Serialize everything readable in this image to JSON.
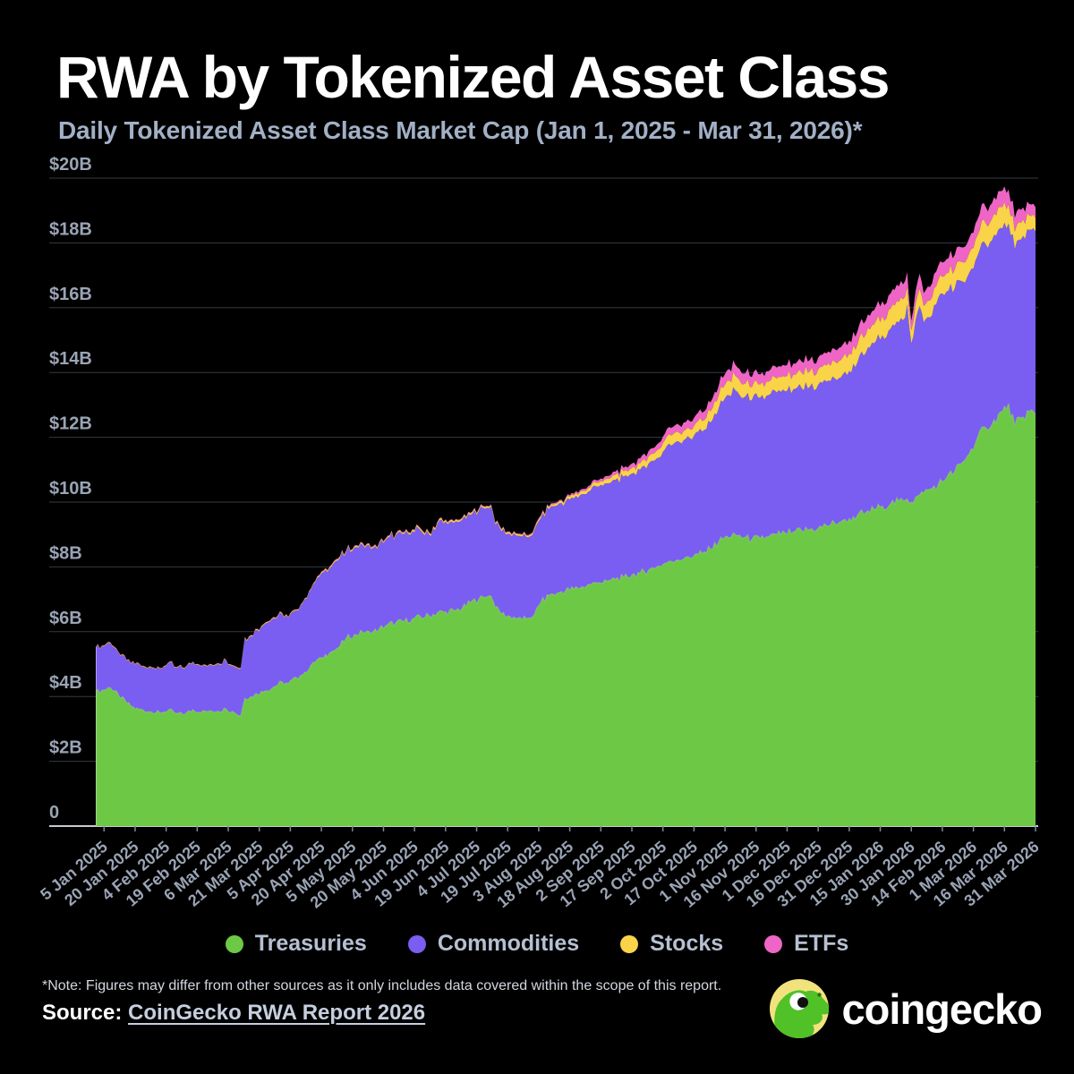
{
  "header": {
    "title": "RWA by Tokenized Asset Class",
    "subtitle": "Daily Tokenized Asset Class Market Cap (Jan 1, 2025 - Mar 31, 2026)*"
  },
  "legend": {
    "items": [
      {
        "label": "Treasuries",
        "color": "#6dc846"
      },
      {
        "label": "Commodities",
        "color": "#7a5df1"
      },
      {
        "label": "Stocks",
        "color": "#f9d348"
      },
      {
        "label": "ETFs",
        "color": "#ef65c5"
      }
    ]
  },
  "footer": {
    "note": "*Note: Figures may differ from other sources as it only includes data covered within the scope of this report.",
    "source_label": "Source:",
    "source_link": "CoinGecko RWA Report 2026",
    "brand_word": "coingecko"
  },
  "colors": {
    "background": "#000000",
    "grid": "#363b44",
    "baseline": "#c6cad2",
    "axis_text": "#9aa4b5",
    "subtitle_text": "#a2b0c6",
    "legend_text": "#b6c0d1",
    "logo_circle": "#f2e27d",
    "logo_gecko": "#50c127"
  },
  "chart_data": {
    "type": "area",
    "stacked": true,
    "title": "RWA by Tokenized Asset Class",
    "subtitle": "Daily Tokenized Asset Class Market Cap (Jan 1, 2025 - Mar 31, 2026)*",
    "unit": "USD billions",
    "grid": "horizontal",
    "legend_position": "bottom",
    "y_axis": {
      "min": 0,
      "max": 20,
      "tick_values": [
        20,
        18,
        16,
        14,
        12,
        10,
        8,
        6,
        4,
        2,
        0
      ],
      "tick_labels": [
        "$20B",
        "$18B",
        "$16B",
        "$14B",
        "$12B",
        "$10B",
        "$8B",
        "$6B",
        "$4B",
        "$2B",
        "0"
      ]
    },
    "x_axis": {
      "start": "1 Jan 2025",
      "end": "31 Mar 2026",
      "tick_days": [
        4,
        19,
        34,
        49,
        64,
        79,
        94,
        109,
        124,
        139,
        154,
        169,
        184,
        199,
        214,
        229,
        244,
        259,
        274,
        289,
        304,
        319,
        334,
        349,
        364,
        379,
        394,
        409,
        424,
        439,
        454
      ],
      "tick_labels": [
        "5 Jan 2025",
        "20 Jan 2025",
        "4 Feb 2025",
        "19 Feb 2025",
        "6 Mar 2025",
        "21 Mar 2025",
        "5 Apr 2025",
        "20 Apr 2025",
        "5 May 2025",
        "20 May 2025",
        "4 Jun 2025",
        "19 Jun 2025",
        "4 Jul 2025",
        "19 Jul 2025",
        "3 Aug 2025",
        "18 Aug 2025",
        "2 Sep 2025",
        "17 Sep 2025",
        "2 Oct 2025",
        "17 Oct 2025",
        "1 Nov 2025",
        "16 Nov 2025",
        "1 Dec 2025",
        "16 Dec 2025",
        "31 Dec 2025",
        "15 Jan 2026",
        "30 Jan 2026",
        "14 Feb 2026",
        "1 Mar 2026",
        "16 Mar 2026",
        "31 Mar 2026"
      ]
    },
    "sample_days": [
      0,
      4,
      7,
      11,
      15,
      19,
      23,
      27,
      31,
      35,
      39,
      43,
      47,
      51,
      55,
      59,
      63,
      67,
      70,
      72,
      75,
      78,
      82,
      86,
      90,
      93,
      97,
      101,
      105,
      109,
      113,
      117,
      121,
      125,
      129,
      133,
      137,
      141,
      145,
      149,
      153,
      157,
      161,
      165,
      169,
      173,
      177,
      181,
      185,
      189,
      191,
      193,
      196,
      200,
      204,
      208,
      212,
      215,
      219,
      223,
      227,
      231,
      235,
      239,
      243,
      247,
      251,
      255,
      259,
      263,
      267,
      271,
      274,
      277,
      281,
      285,
      289,
      293,
      297,
      301,
      305,
      309,
      313,
      317,
      321,
      325,
      329,
      333,
      337,
      341,
      345,
      349,
      353,
      357,
      361,
      364,
      368,
      372,
      376,
      380,
      384,
      388,
      391,
      392,
      394,
      396,
      398,
      400,
      403,
      407,
      411,
      415,
      419,
      423,
      426,
      430,
      434,
      438,
      441,
      444,
      447,
      451,
      454
    ],
    "series": [
      {
        "name": "Treasuries",
        "color": "#6dc846",
        "values": [
          4.15,
          4.2,
          4.28,
          4.05,
          3.8,
          3.62,
          3.58,
          3.52,
          3.5,
          3.58,
          3.48,
          3.45,
          3.6,
          3.52,
          3.56,
          3.55,
          3.62,
          3.5,
          3.4,
          3.95,
          4.0,
          4.08,
          4.18,
          4.3,
          4.45,
          4.4,
          4.58,
          4.75,
          5.05,
          5.2,
          5.35,
          5.5,
          5.8,
          5.92,
          5.98,
          5.95,
          6.1,
          6.22,
          6.28,
          6.32,
          6.4,
          6.45,
          6.5,
          6.58,
          6.62,
          6.65,
          6.72,
          6.9,
          7.0,
          7.08,
          7.1,
          6.75,
          6.55,
          6.48,
          6.42,
          6.4,
          6.55,
          6.9,
          7.12,
          7.2,
          7.28,
          7.32,
          7.4,
          7.45,
          7.52,
          7.56,
          7.62,
          7.68,
          7.75,
          7.82,
          7.9,
          8.0,
          8.08,
          8.18,
          8.22,
          8.3,
          8.35,
          8.42,
          8.55,
          8.78,
          8.95,
          9.0,
          8.9,
          8.85,
          8.88,
          8.92,
          9.0,
          9.05,
          9.08,
          9.12,
          9.16,
          9.2,
          9.28,
          9.35,
          9.45,
          9.5,
          9.6,
          9.68,
          9.78,
          9.88,
          9.95,
          10.02,
          10.05,
          10.1,
          10.0,
          10.15,
          10.22,
          10.28,
          10.4,
          10.55,
          10.75,
          10.95,
          11.25,
          11.65,
          12.0,
          12.3,
          12.55,
          12.8,
          13.05,
          12.35,
          12.6,
          12.8,
          12.7
        ]
      },
      {
        "name": "Commodities",
        "color": "#7a5df1",
        "values": [
          1.35,
          1.35,
          1.37,
          1.3,
          1.3,
          1.36,
          1.34,
          1.36,
          1.35,
          1.44,
          1.4,
          1.41,
          1.45,
          1.4,
          1.42,
          1.45,
          1.48,
          1.42,
          1.46,
          1.85,
          1.86,
          1.97,
          2.07,
          2.12,
          2.1,
          2.02,
          2.07,
          2.25,
          2.4,
          2.6,
          2.6,
          2.7,
          2.65,
          2.68,
          2.7,
          2.6,
          2.62,
          2.68,
          2.7,
          2.7,
          2.7,
          2.67,
          2.5,
          2.74,
          2.78,
          2.7,
          2.73,
          2.7,
          2.72,
          2.74,
          2.76,
          2.55,
          2.55,
          2.54,
          2.54,
          2.52,
          2.6,
          2.6,
          2.66,
          2.7,
          2.74,
          2.8,
          2.85,
          2.9,
          2.96,
          3.02,
          3.06,
          3.1,
          3.13,
          3.18,
          3.28,
          3.35,
          3.47,
          3.62,
          3.66,
          3.65,
          3.7,
          3.76,
          3.9,
          4.12,
          4.35,
          4.45,
          4.32,
          4.3,
          4.34,
          4.38,
          4.38,
          4.37,
          4.4,
          4.4,
          4.4,
          4.42,
          4.44,
          4.47,
          4.5,
          4.55,
          4.72,
          4.92,
          5.12,
          5.27,
          5.4,
          5.53,
          5.65,
          6.0,
          4.9,
          5.45,
          5.83,
          5.27,
          5.3,
          5.75,
          5.75,
          5.65,
          5.55,
          5.55,
          5.6,
          5.65,
          5.7,
          5.65,
          5.55,
          5.45,
          5.5,
          5.6,
          5.65
        ]
      },
      {
        "name": "Stocks",
        "color": "#f9d348",
        "values": [
          0.02,
          0.02,
          0.02,
          0.02,
          0.02,
          0.02,
          0.02,
          0.02,
          0.02,
          0.02,
          0.02,
          0.02,
          0.02,
          0.02,
          0.02,
          0.02,
          0.02,
          0.02,
          0.02,
          0.03,
          0.03,
          0.03,
          0.03,
          0.03,
          0.03,
          0.03,
          0.03,
          0.03,
          0.03,
          0.04,
          0.04,
          0.04,
          0.04,
          0.04,
          0.04,
          0.04,
          0.04,
          0.04,
          0.04,
          0.04,
          0.05,
          0.05,
          0.05,
          0.05,
          0.05,
          0.05,
          0.05,
          0.05,
          0.05,
          0.05,
          0.05,
          0.05,
          0.05,
          0.05,
          0.05,
          0.05,
          0.06,
          0.06,
          0.06,
          0.07,
          0.08,
          0.09,
          0.1,
          0.11,
          0.12,
          0.14,
          0.16,
          0.17,
          0.18,
          0.2,
          0.22,
          0.24,
          0.27,
          0.3,
          0.3,
          0.28,
          0.3,
          0.32,
          0.35,
          0.4,
          0.44,
          0.45,
          0.42,
          0.4,
          0.41,
          0.42,
          0.44,
          0.45,
          0.46,
          0.47,
          0.48,
          0.48,
          0.5,
          0.52,
          0.53,
          0.54,
          0.55,
          0.57,
          0.58,
          0.6,
          0.62,
          0.63,
          0.64,
          0.55,
          0.4,
          0.5,
          0.55,
          0.5,
          0.52,
          0.55,
          0.56,
          0.58,
          0.6,
          0.62,
          0.64,
          0.65,
          0.66,
          0.66,
          0.6,
          0.55,
          0.52,
          0.45,
          0.42
        ]
      },
      {
        "name": "ETFs",
        "color": "#ef65c5",
        "values": [
          0.01,
          0.01,
          0.01,
          0.01,
          0.01,
          0.01,
          0.01,
          0.01,
          0.01,
          0.01,
          0.01,
          0.01,
          0.01,
          0.01,
          0.01,
          0.01,
          0.01,
          0.01,
          0.01,
          0.01,
          0.01,
          0.01,
          0.01,
          0.01,
          0.01,
          0.01,
          0.01,
          0.01,
          0.01,
          0.02,
          0.02,
          0.02,
          0.02,
          0.02,
          0.02,
          0.02,
          0.02,
          0.02,
          0.02,
          0.02,
          0.02,
          0.02,
          0.02,
          0.02,
          0.02,
          0.02,
          0.02,
          0.02,
          0.02,
          0.02,
          0.02,
          0.02,
          0.02,
          0.02,
          0.02,
          0.02,
          0.03,
          0.03,
          0.03,
          0.03,
          0.04,
          0.05,
          0.06,
          0.07,
          0.08,
          0.09,
          0.1,
          0.11,
          0.13,
          0.15,
          0.17,
          0.18,
          0.2,
          0.22,
          0.24,
          0.24,
          0.25,
          0.26,
          0.28,
          0.3,
          0.33,
          0.34,
          0.32,
          0.31,
          0.31,
          0.32,
          0.33,
          0.34,
          0.34,
          0.35,
          0.35,
          0.36,
          0.37,
          0.38,
          0.39,
          0.4,
          0.41,
          0.43,
          0.44,
          0.45,
          0.47,
          0.48,
          0.48,
          0.45,
          0.3,
          0.4,
          0.45,
          0.4,
          0.42,
          0.44,
          0.44,
          0.45,
          0.46,
          0.48,
          0.48,
          0.5,
          0.5,
          0.5,
          0.45,
          0.42,
          0.4,
          0.35,
          0.33
        ]
      }
    ]
  }
}
